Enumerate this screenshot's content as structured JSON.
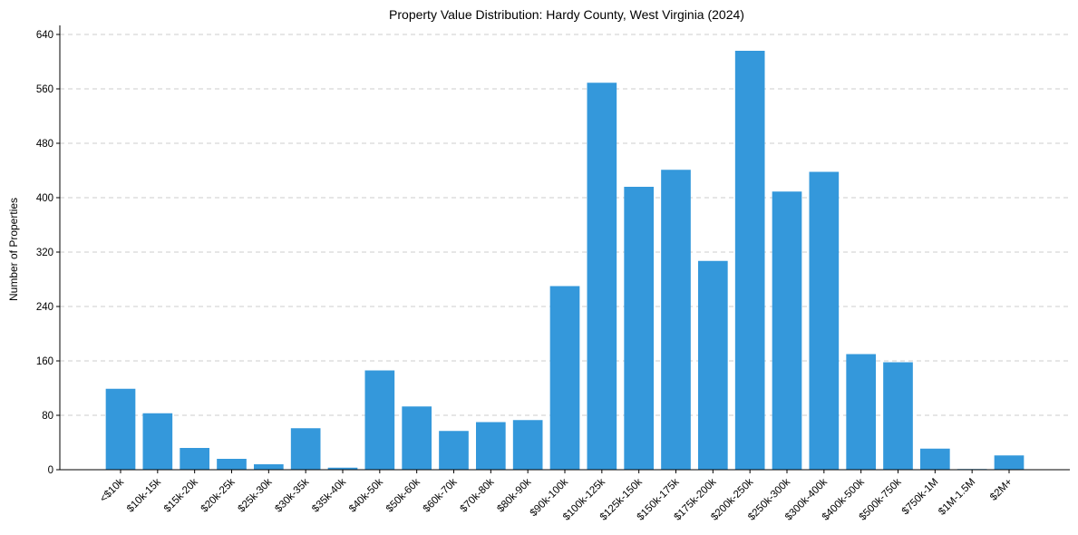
{
  "chart_data": {
    "type": "bar",
    "title": "Property Value Distribution: Hardy County, West Virginia (2024)",
    "xlabel": "",
    "ylabel": "Number of Properties",
    "ylim": [
      0,
      640
    ],
    "yticks": [
      0,
      80,
      160,
      240,
      320,
      400,
      480,
      560,
      640
    ],
    "grid": "y",
    "bar_color": "#3498db",
    "categories": [
      "<$10k",
      "$10k-15k",
      "$15k-20k",
      "$20k-25k",
      "$25k-30k",
      "$30k-35k",
      "$35k-40k",
      "$40k-50k",
      "$50k-60k",
      "$60k-70k",
      "$70k-80k",
      "$80k-90k",
      "$90k-100k",
      "$100k-125k",
      "$125k-150k",
      "$150k-175k",
      "$175k-200k",
      "$200k-250k",
      "$250k-300k",
      "$300k-400k",
      "$400k-500k",
      "$500k-750k",
      "$750k-1M",
      "$1M-1.5M",
      "$2M+"
    ],
    "values": [
      119,
      83,
      32,
      16,
      8,
      61,
      3,
      146,
      93,
      57,
      70,
      73,
      270,
      569,
      416,
      441,
      307,
      616,
      409,
      438,
      170,
      158,
      31,
      1,
      21
    ]
  }
}
